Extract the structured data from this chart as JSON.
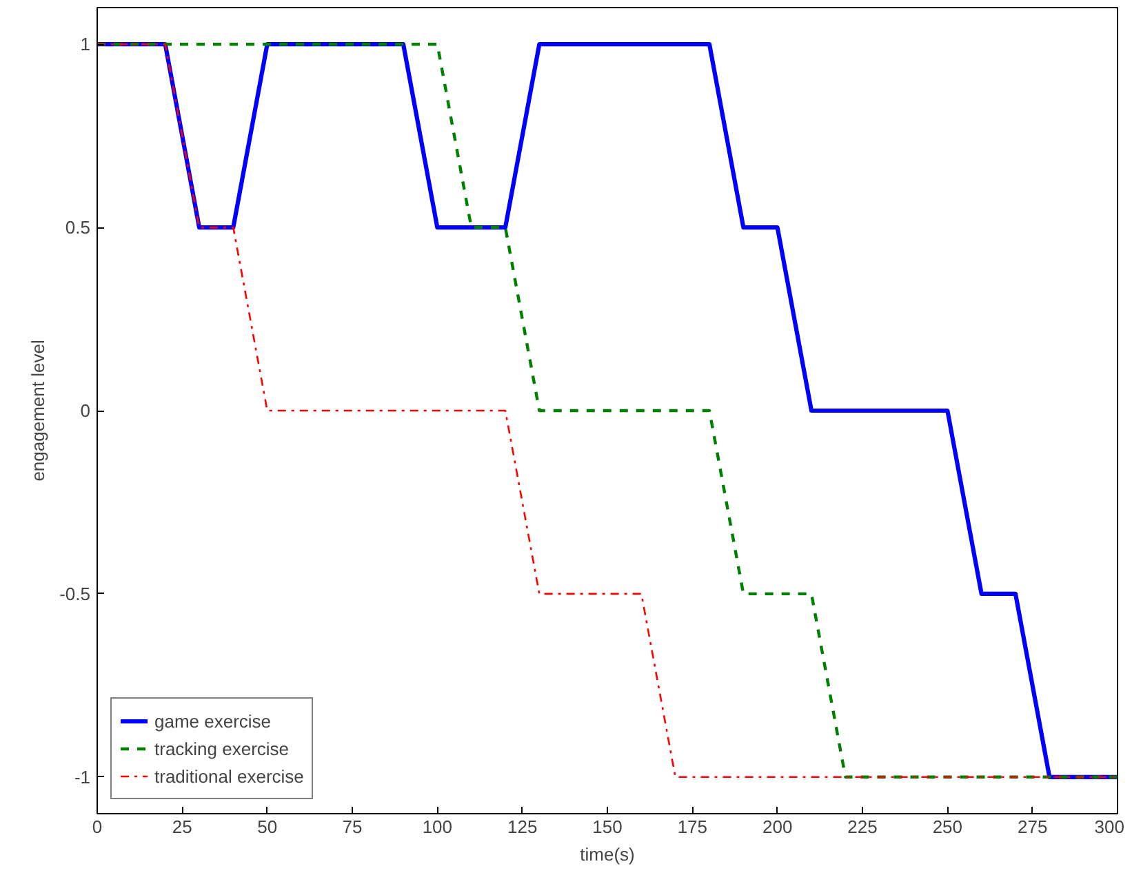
{
  "chart_data": {
    "type": "line",
    "xlabel": "time(s)",
    "ylabel": "engagement level",
    "xlim": [
      0,
      300
    ],
    "xticks": [
      0,
      25,
      50,
      75,
      100,
      125,
      150,
      175,
      200,
      225,
      250,
      275,
      300
    ],
    "ylim": [
      -1.1,
      1.1
    ],
    "yticks": [
      {
        "value": -1,
        "label": "-1"
      },
      {
        "value": -0.5,
        "label": "-0.5"
      },
      {
        "value": 0,
        "label": "0"
      },
      {
        "value": 0.5,
        "label": "0.5"
      },
      {
        "value": 1,
        "label": "1"
      }
    ],
    "grid": false,
    "legend": "bottom left",
    "series": [
      {
        "name": "game exercise",
        "color": "#0000ff",
        "line_style": "solid",
        "x": [
          0,
          20,
          30,
          40,
          50,
          90,
          100,
          120,
          130,
          180,
          190,
          200,
          210,
          250,
          260,
          270,
          280,
          300
        ],
        "values": [
          1,
          1,
          0.5,
          0.5,
          1,
          1,
          0.5,
          0.5,
          1,
          1,
          0.5,
          0.5,
          0,
          0,
          -0.5,
          -0.5,
          -1,
          -1
        ]
      },
      {
        "name": "tracking exercise",
        "color": "#008000",
        "line_style": "dashed",
        "x": [
          0,
          100,
          110,
          120,
          130,
          180,
          190,
          210,
          220,
          300
        ],
        "values": [
          1,
          1,
          0.5,
          0.5,
          0,
          0,
          -0.5,
          -0.5,
          -1,
          -1
        ]
      },
      {
        "name": "traditional exercise",
        "color": "#ff0000",
        "line_style": "dashdot",
        "x": [
          0,
          20,
          30,
          40,
          50,
          120,
          130,
          160,
          170,
          300
        ],
        "values": [
          1,
          1,
          0.5,
          0.5,
          0,
          0,
          -0.5,
          -0.5,
          -1,
          -1
        ]
      }
    ]
  }
}
